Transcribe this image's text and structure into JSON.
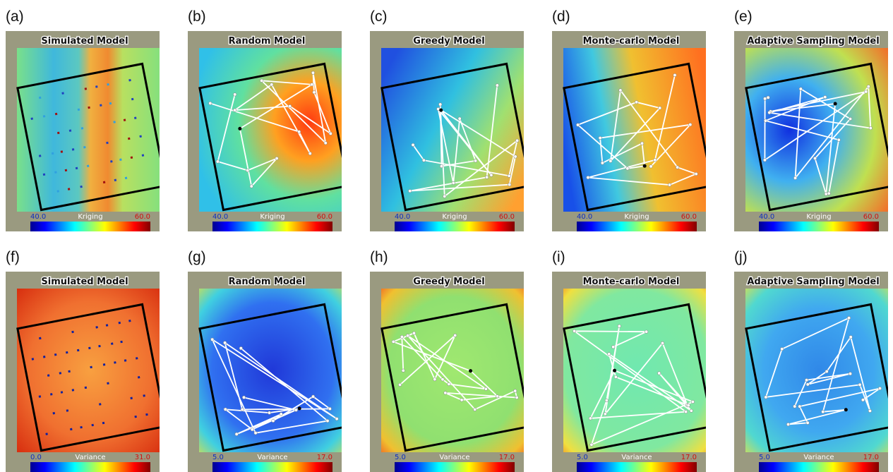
{
  "panels": [
    {
      "label": "(a)",
      "title": "Simulated Model",
      "colorbar": {
        "min": "40.0",
        "name": "Kriging",
        "max": "60.0"
      }
    },
    {
      "label": "(b)",
      "title": "Random Model",
      "colorbar": {
        "min": "40.0",
        "name": "Kriging",
        "max": "60.0"
      }
    },
    {
      "label": "(c)",
      "title": "Greedy Model",
      "colorbar": {
        "min": "40.0",
        "name": "Kriging",
        "max": "60.0"
      }
    },
    {
      "label": "(d)",
      "title": "Monte-carlo Model",
      "colorbar": {
        "min": "40.0",
        "name": "Kriging",
        "max": "60.0"
      }
    },
    {
      "label": "(e)",
      "title": "Adaptive Sampling Model",
      "colorbar": {
        "min": "40.0",
        "name": "Kriging",
        "max": "60.0"
      }
    },
    {
      "label": "(f)",
      "title": "Simulated Model",
      "colorbar": {
        "min": "0.0",
        "name": "Variance",
        "max": "31.0"
      }
    },
    {
      "label": "(g)",
      "title": "Random Model",
      "colorbar": {
        "min": "5.0",
        "name": "Variance",
        "max": "17.0"
      }
    },
    {
      "label": "(h)",
      "title": "Greedy Model",
      "colorbar": {
        "min": "5.0",
        "name": "Variance",
        "max": "17.0"
      }
    },
    {
      "label": "(i)",
      "title": "Monte-carlo Model",
      "colorbar": {
        "min": "5.0",
        "name": "Variance",
        "max": "17.0"
      }
    },
    {
      "label": "(j)",
      "title": "Adaptive Sampling Model",
      "colorbar": {
        "min": "5.0",
        "name": "Variance",
        "max": "17.0"
      }
    }
  ]
}
